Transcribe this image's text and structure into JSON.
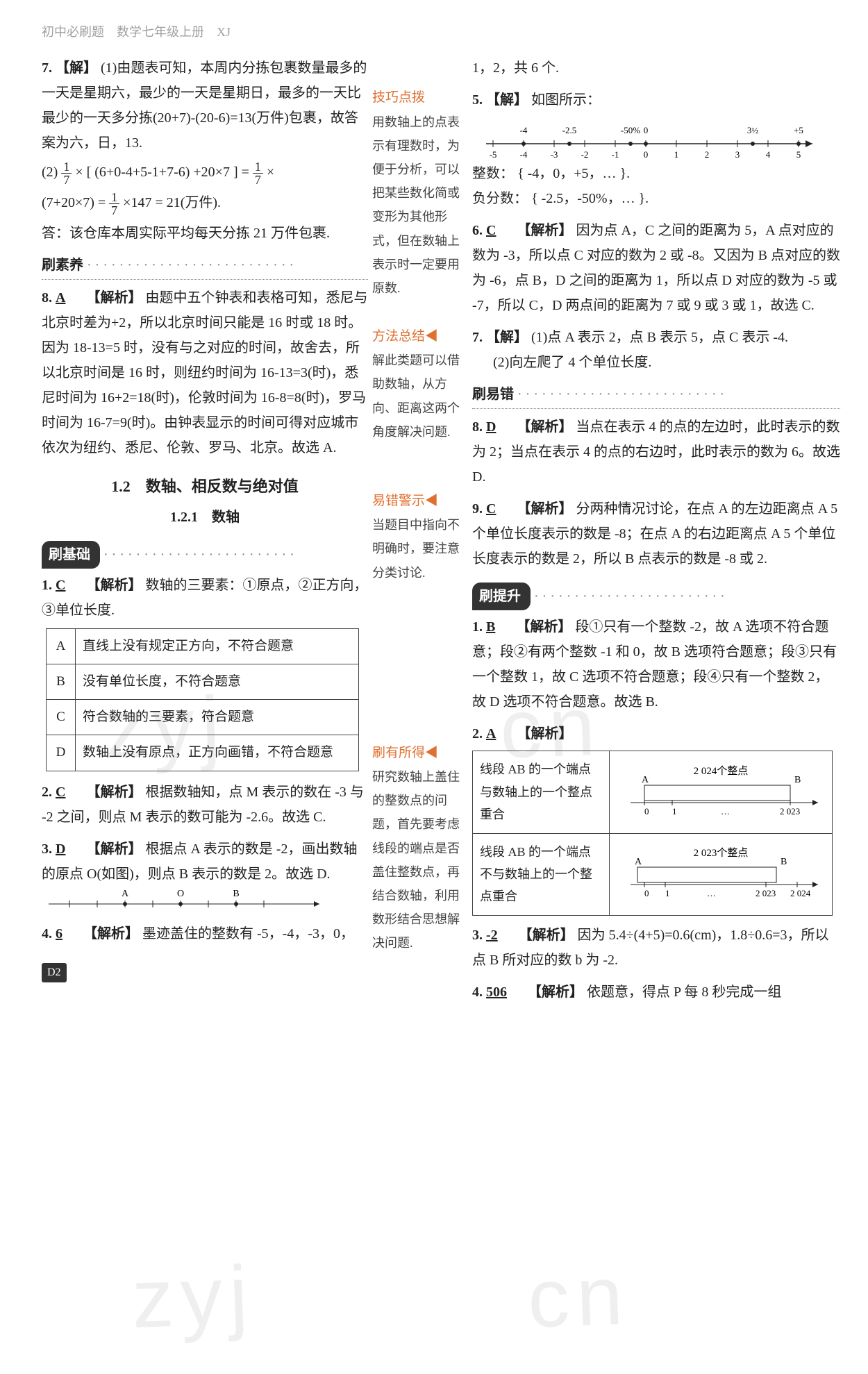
{
  "header": "初中必刷题　数学七年级上册　XJ",
  "left": {
    "q7": {
      "num": "7.",
      "label": "【解】",
      "line1": "(1)由题表可知，本周内分拣包裹数量最多的一天是星期六，最少的一天是星期日，最多的一天比最少的一天多分拣(20+7)-(20-6)=13(万件)包裹，故答案为六，日，13.",
      "line2a": "(2) ",
      "frac1_n": "1",
      "frac1_d": "7",
      "line2b": " × [ (6+0-4+5-1+7-6) +20×7 ] = ",
      "frac2_n": "1",
      "frac2_d": "7",
      "line2c": " ×",
      "line3a": "(7+20×7) = ",
      "frac3_n": "1",
      "frac3_d": "7",
      "line3b": " ×147 = 21(万件).",
      "line4": "答：该仓库本周实际平均每天分拣 21 万件包裹."
    },
    "suyang_title": "刷素养",
    "q8": {
      "num": "8.",
      "ans": "A",
      "tag": "【解析】",
      "body": "由题中五个钟表和表格可知，悉尼与北京时差为+2，所以北京时间只能是 16 时或 18 时。因为 18-13=5 时，没有与之对应的时间，故舍去，所以北京时间是 16 时，则纽约时间为 16-13=3(时)，悉尼时间为 16+2=18(时)，伦敦时间为 16-8=8(时)，罗马时间为 16-7=9(时)。由钟表显示的时间可得对应城市依次为纽约、悉尼、伦敦、罗马、北京。故选 A."
    },
    "sec_title": "1.2　数轴、相反数与绝对值",
    "sub_title": "1.2.1　数轴",
    "jichu_title": "刷基础",
    "q1": {
      "num": "1.",
      "ans": "C",
      "tag": "【解析】",
      "body": "数轴的三要素：①原点，②正方向，③单位长度.",
      "optA_l": "A",
      "optA": "直线上没有规定正方向，不符合题意",
      "optB_l": "B",
      "optB": "没有单位长度，不符合题意",
      "optC_l": "C",
      "optC": "符合数轴的三要素，符合题意",
      "optD_l": "D",
      "optD": "数轴上没有原点，正方向画错，不符合题意"
    },
    "q2": {
      "num": "2.",
      "ans": "C",
      "tag": "【解析】",
      "body": "根据数轴知，点 M 表示的数在 -3 与 -2 之间，则点 M 表示的数可能为 -2.6。故选 C."
    },
    "q3": {
      "num": "3.",
      "ans": "D",
      "tag": "【解析】",
      "body": "根据点 A 表示的数是 -2，画出数轴的原点 O(如图)，则点 B 表示的数是 2。故选 D.",
      "axis_A": "A",
      "axis_O": "O",
      "axis_B": "B"
    },
    "q4": {
      "num": "4.",
      "ans": "6",
      "tag": "【解析】",
      "body": "墨迹盖住的整数有 -5，-4，-3，0，"
    },
    "page": "D2"
  },
  "mid": {
    "jiqiao_title": "技巧点拨",
    "jiqiao_body": "用数轴上的点表示有理数时，为便于分析，可以把某些数化简或变形为其他形式，但在数轴上表示时一定要用原数.",
    "fangfa_title": "方法总结",
    "fangfa_body": "解此类题可以借助数轴，从方向、距离这两个角度解决问题.",
    "yicuo_title": "易错警示",
    "yicuo_body": "当题目中指向不明确时，要注意分类讨论.",
    "suode_title": "刷有所得",
    "suode_body": "研究数轴上盖住的整数点的问题，首先要考虑线段的端点是否盖住整数点，再结合数轴，利用数形结合思想解决问题."
  },
  "right": {
    "q4cont": "1，2，共 6 个.",
    "q5": {
      "num": "5.",
      "label": "【解】",
      "text": "如图所示：",
      "marks": [
        "-4",
        "-2.5",
        "-50%",
        "0",
        "3½",
        "+5"
      ],
      "ticks": [
        "-5",
        "-4",
        "-3",
        "-2",
        "-1",
        "0",
        "1",
        "2",
        "3",
        "4",
        "5"
      ],
      "int_label": "整数：",
      "int_set": "{ -4，0，+5，… }.",
      "neg_label": "负分数：",
      "neg_set": "{ -2.5，-50%，… }."
    },
    "q6": {
      "num": "6.",
      "ans": "C",
      "tag": "【解析】",
      "body": "因为点 A，C 之间的距离为 5，A 点对应的数为 -3，所以点 C 对应的数为 2 或 -8。又因为 B 点对应的数为 -6，点 B，D 之间的距离为 1，所以点 D 对应的数为 -5 或 -7，所以 C，D 两点间的距离为 7 或 9 或 3 或 1，故选 C."
    },
    "q7r": {
      "num": "7.",
      "label": "【解】",
      "l1": "(1)点 A 表示 2，点 B 表示 5，点 C 表示 -4.",
      "l2": "(2)向左爬了 4 个单位长度."
    },
    "yicuo_title": "刷易错",
    "q8r": {
      "num": "8.",
      "ans": "D",
      "tag": "【解析】",
      "body": "当点在表示 4 的点的左边时，此时表示的数为 2；当点在表示 4 的点的右边时，此时表示的数为 6。故选 D."
    },
    "q9": {
      "num": "9.",
      "ans": "C",
      "tag": "【解析】",
      "body": "分两种情况讨论，在点 A 的左边距离点 A 5 个单位长度表示的数是 -8；在点 A 的右边距离点 A 5 个单位长度表示的数是 2，所以 B 点表示的数是 -8 或 2."
    },
    "tisheng_title": "刷提升",
    "q1r": {
      "num": "1.",
      "ans": "B",
      "tag": "【解析】",
      "body": "段①只有一个整数 -2，故 A 选项不符合题意；段②有两个整数 -1 和 0，故 B 选项符合题意；段③只有一个整数 1，故 C 选项不符合题意；段④只有一个整数 2，故 D 选项不符合题意。故选 B."
    },
    "q2r": {
      "num": "2.",
      "ans": "A",
      "tag": "【解析】",
      "row1_text": "线段 AB 的一个端点与数轴上的一个整点重合",
      "row1_cap": "2 024个整点",
      "row1_ticks": [
        "0",
        "1",
        "…",
        "2 023"
      ],
      "row1_A": "A",
      "row1_B": "B",
      "row2_text": "线段 AB 的一个端点不与数轴上的一个整点重合",
      "row2_cap": "2 023个整点",
      "row2_ticks": [
        "0",
        "1",
        "…",
        "2 023",
        "2 024"
      ],
      "row2_A": "A",
      "row2_B": "B"
    },
    "q3r": {
      "num": "3.",
      "ans": "-2",
      "tag": "【解析】",
      "body": "因为 5.4÷(4+5)=0.6(cm)，1.8÷0.6=3，所以点 B 所对应的数 b 为 -2."
    },
    "q4r": {
      "num": "4.",
      "ans": "506",
      "tag": "【解析】",
      "body": "依题意，得点 P 每 8 秒完成一组"
    }
  },
  "watermarks": {
    "w1": "zyj",
    "w2": "cn",
    "w3": "zyj",
    "w4": "cn"
  },
  "colors": {
    "text": "#222222",
    "header_grey": "#a0a0a0",
    "orange": "#e07030",
    "banner_bg": "#333333",
    "border": "#444444"
  }
}
